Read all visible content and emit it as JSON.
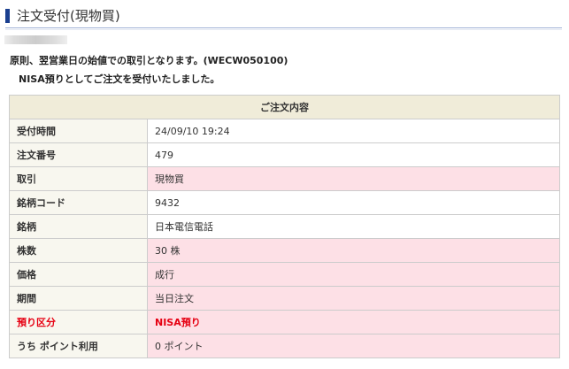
{
  "title": "注文受付(現物買)",
  "message": "原則、翌営業日の始値での取引となります。(WECW050100)",
  "sub_message": "NISA預りとしてご注文を受付いたしました。",
  "table": {
    "header": "ご注文内容",
    "rows": [
      {
        "label": "受付時間",
        "value": "24/09/10 19:24",
        "highlight": false
      },
      {
        "label": "注文番号",
        "value": "479",
        "highlight": false
      },
      {
        "label": "取引",
        "value": "現物買",
        "highlight": true
      },
      {
        "label": "銘柄コード",
        "value": "9432",
        "highlight": false
      },
      {
        "label": "銘柄",
        "value": "日本電信電話",
        "highlight": false
      },
      {
        "label": "株数",
        "value": "30 株",
        "highlight": true
      },
      {
        "label": "価格",
        "value": "成行",
        "highlight": true
      },
      {
        "label": "期間",
        "value": "当日注文",
        "highlight": true
      },
      {
        "label": "預り区分",
        "value": "NISA預り",
        "highlight": true,
        "emphasis": true
      },
      {
        "label": "うち ポイント利用",
        "value": "0 ポイント",
        "highlight": true
      }
    ]
  },
  "colors": {
    "accent": "#1a3f8f",
    "emphasis": "#e60012",
    "highlight_bg": "#fde0e6"
  }
}
